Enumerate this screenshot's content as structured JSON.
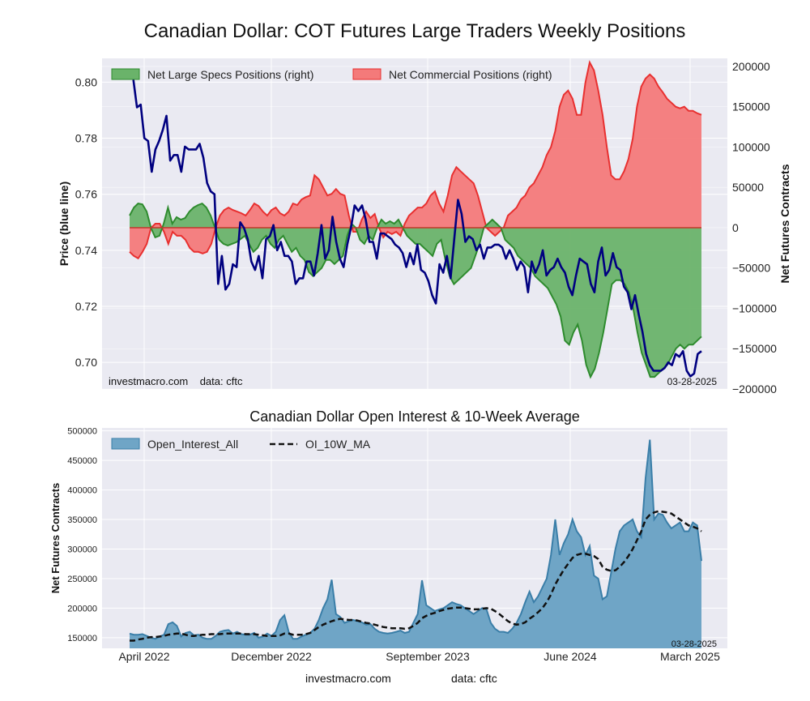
{
  "page": {
    "title": "Canadian Dollar: COT Futures Large Traders Weekly Positions",
    "footer_site": "investmacro.com",
    "footer_data": "data: cftc"
  },
  "chart_data": [
    {
      "type": "line",
      "title": "Canadian Dollar: COT Futures Large Traders Weekly Positions",
      "ylabel": "Price (blue line)",
      "ylabel_right": "Net Futures Contracts",
      "ylim": [
        0.6905,
        0.8085
      ],
      "ylim_right": [
        -200000,
        210000
      ],
      "yticks": [
        0.7,
        0.72,
        0.74,
        0.76,
        0.78,
        0.8
      ],
      "ytick_labels": [
        "0.70",
        "0.72",
        "0.74",
        "0.76",
        "0.78",
        "0.80"
      ],
      "yticks_right": [
        -200000,
        -150000,
        -100000,
        -50000,
        0,
        50000,
        100000,
        150000,
        200000
      ],
      "ytick_labels_right": [
        "−200000",
        "−150000",
        "−100000",
        "−50000",
        "0",
        "50000",
        "100000",
        "150000",
        "200000"
      ],
      "legend_position": "top-left",
      "grid": true,
      "watermark": "investmacro.com    data: cftc",
      "date_label": "03-28-2025",
      "series": [
        {
          "name": "Price",
          "color": "#000080",
          "values": [
            0.802,
            0.801,
            0.791,
            0.792,
            0.78,
            0.779,
            0.768,
            0.776,
            0.779,
            0.783,
            0.788,
            0.772,
            0.774,
            0.774,
            0.768,
            0.777,
            0.776,
            0.776,
            0.776,
            0.778,
            0.773,
            0.764,
            0.761,
            0.76,
            0.728,
            0.738,
            0.726,
            0.728,
            0.735,
            0.734,
            0.75,
            0.748,
            0.744,
            0.736,
            0.733,
            0.738,
            0.73,
            0.744,
            0.745,
            0.749,
            0.74,
            0.743,
            0.738,
            0.738,
            0.736,
            0.728,
            0.73,
            0.73,
            0.736,
            0.736,
            0.731,
            0.739,
            0.749,
            0.737,
            0.74,
            0.752,
            0.743,
            0.737,
            0.734,
            0.742,
            0.748,
            0.756,
            0.754,
            0.756,
            0.751,
            0.743,
            0.743,
            0.737,
            0.746,
            0.746,
            0.745,
            0.744,
            0.742,
            0.741,
            0.739,
            0.734,
            0.739,
            0.735,
            0.742,
            0.733,
            0.732,
            0.729,
            0.724,
            0.721,
            0.735,
            0.732,
            0.738,
            0.73,
            0.744,
            0.758,
            0.753,
            0.743,
            0.745,
            0.744,
            0.74,
            0.742,
            0.737,
            0.741,
            0.741,
            0.742,
            0.742,
            0.741,
            0.737,
            0.74,
            0.737,
            0.733,
            0.736,
            0.734,
            0.725,
            0.736,
            0.732,
            0.735,
            0.74,
            0.731,
            0.733,
            0.734,
            0.737,
            0.734,
            0.732,
            0.727,
            0.724,
            0.731,
            0.737,
            0.736,
            0.735,
            0.728,
            0.725,
            0.736,
            0.741,
            0.731,
            0.733,
            0.739,
            0.734,
            0.733,
            0.727,
            0.725,
            0.719,
            0.724,
            0.717,
            0.711,
            0.703,
            0.699,
            0.697,
            0.697,
            0.697,
            0.698,
            0.7,
            0.699,
            0.703,
            0.702,
            0.704,
            0.697,
            0.695,
            0.696,
            0.703,
            0.704
          ]
        },
        {
          "name": "Net Large Specs Positions (right)",
          "color": "#2e8b2e",
          "fill": "#6ab36a",
          "values": [
            15000,
            25000,
            30000,
            29000,
            20000,
            0,
            -12000,
            -10000,
            5000,
            25000,
            5000,
            13000,
            10000,
            12000,
            20000,
            25000,
            28000,
            30000,
            25000,
            15000,
            0,
            -15000,
            -20000,
            -22000,
            -20000,
            -18000,
            -14000,
            -10000,
            -20000,
            -30000,
            -25000,
            -15000,
            -10000,
            -20000,
            -25000,
            -15000,
            -10000,
            -20000,
            -30000,
            -25000,
            -35000,
            -40000,
            -55000,
            -60000,
            -55000,
            -50000,
            -40000,
            -40000,
            -45000,
            -40000,
            -35000,
            -10000,
            5000,
            0,
            -15000,
            -20000,
            -10000,
            -15000,
            0,
            10000,
            5000,
            8000,
            5000,
            10000,
            0,
            -10000,
            -15000,
            -20000,
            -20000,
            -25000,
            -30000,
            -35000,
            -20000,
            -15000,
            -40000,
            -60000,
            -70000,
            -65000,
            -60000,
            -55000,
            -50000,
            -35000,
            -20000,
            0,
            5000,
            10000,
            5000,
            0,
            -15000,
            -20000,
            -25000,
            -35000,
            -40000,
            -45000,
            -50000,
            -60000,
            -65000,
            -70000,
            -75000,
            -85000,
            -95000,
            -110000,
            -140000,
            -145000,
            -130000,
            -120000,
            -140000,
            -170000,
            -185000,
            -175000,
            -155000,
            -130000,
            -100000,
            -70000,
            -65000,
            -65000,
            -70000,
            -80000,
            -100000,
            -130000,
            -155000,
            -170000,
            -185000,
            -185000,
            -180000,
            -175000,
            -170000,
            -160000,
            -150000,
            -145000,
            -150000,
            -145000,
            -145000,
            -140000,
            -135000
          ]
        },
        {
          "name": "Net Commercial Positions (right)",
          "color": "#e83030",
          "fill": "#f47a7a",
          "values": [
            -30000,
            -35000,
            -38000,
            -30000,
            -20000,
            0,
            5000,
            5000,
            -5000,
            -20000,
            -5000,
            -10000,
            -10000,
            -15000,
            -25000,
            -30000,
            -30000,
            -32000,
            -30000,
            -20000,
            0,
            15000,
            22000,
            25000,
            22000,
            20000,
            18000,
            15000,
            22000,
            30000,
            27000,
            20000,
            15000,
            22000,
            25000,
            18000,
            15000,
            20000,
            30000,
            28000,
            35000,
            38000,
            40000,
            65000,
            60000,
            50000,
            40000,
            42000,
            48000,
            42000,
            40000,
            15000,
            -5000,
            -5000,
            10000,
            20000,
            12000,
            17000,
            0,
            -12000,
            -5000,
            -8000,
            -5000,
            -10000,
            5000,
            15000,
            20000,
            25000,
            25000,
            30000,
            40000,
            45000,
            30000,
            20000,
            40000,
            65000,
            75000,
            70000,
            65000,
            60000,
            55000,
            40000,
            20000,
            0,
            -5000,
            -10000,
            -5000,
            0,
            15000,
            20000,
            25000,
            35000,
            40000,
            50000,
            55000,
            65000,
            75000,
            90000,
            100000,
            120000,
            150000,
            165000,
            170000,
            160000,
            140000,
            140000,
            180000,
            205000,
            195000,
            170000,
            140000,
            100000,
            65000,
            60000,
            60000,
            70000,
            85000,
            110000,
            150000,
            175000,
            185000,
            190000,
            185000,
            175000,
            168000,
            160000,
            155000,
            150000,
            148000,
            150000,
            145000,
            145000,
            142000,
            140000
          ]
        }
      ]
    },
    {
      "type": "area",
      "title": "Canadian Dollar Open Interest & 10-Week Average",
      "ylabel": "Net Futures Contracts",
      "ylim": [
        132000,
        505000
      ],
      "yticks": [
        150000,
        200000,
        250000,
        300000,
        350000,
        400000,
        450000,
        500000
      ],
      "ytick_labels": [
        "150000",
        "200000",
        "250000",
        "300000",
        "350000",
        "400000",
        "450000",
        "500000"
      ],
      "x_tick_labels": [
        "April 2022",
        "December 2022",
        "September 2023",
        "June 2024",
        "March 2025"
      ],
      "legend_position": "top-left",
      "grid": true,
      "date_label": "03-28-2025",
      "series": [
        {
          "name": "Open_Interest_All",
          "color": "#3a7ea8",
          "fill": "#6fa5c6",
          "values": [
            157000,
            155000,
            155000,
            156000,
            153000,
            150000,
            148000,
            152000,
            155000,
            173000,
            176000,
            170000,
            152000,
            158000,
            160000,
            154000,
            155000,
            150000,
            148000,
            148000,
            153000,
            160000,
            162000,
            163000,
            157000,
            160000,
            156000,
            155000,
            155000,
            158000,
            150000,
            152000,
            157000,
            153000,
            160000,
            180000,
            188000,
            160000,
            148000,
            148000,
            152000,
            155000,
            158000,
            165000,
            180000,
            200000,
            215000,
            248000,
            190000,
            185000,
            175000,
            178000,
            180000,
            178000,
            176000,
            172000,
            173000,
            165000,
            160000,
            158000,
            157000,
            158000,
            160000,
            162000,
            158000,
            160000,
            175000,
            190000,
            247000,
            205000,
            200000,
            195000,
            198000,
            200000,
            205000,
            210000,
            207000,
            205000,
            200000,
            195000,
            190000,
            195000,
            200000,
            198000,
            175000,
            165000,
            160000,
            160000,
            158000,
            165000,
            175000,
            190000,
            210000,
            228000,
            210000,
            220000,
            235000,
            250000,
            290000,
            350000,
            290000,
            310000,
            325000,
            350000,
            330000,
            320000,
            290000,
            305000,
            255000,
            250000,
            215000,
            220000,
            260000,
            300000,
            330000,
            340000,
            345000,
            350000,
            330000,
            320000,
            420000,
            485000,
            350000,
            360000,
            358000,
            345000,
            335000,
            340000,
            345000,
            330000,
            330000,
            345000,
            340000,
            280000
          ],
          "color_note": "area"
        },
        {
          "name": "OI_10W_MA",
          "color": "#111111",
          "values": [
            145000,
            145000,
            147000,
            148000,
            150000,
            151000,
            151000,
            152000,
            153000,
            155000,
            156000,
            157000,
            157000,
            155000,
            153000,
            153000,
            154000,
            155000,
            155000,
            156000,
            156000,
            156000,
            157000,
            157000,
            157000,
            157000,
            157000,
            156000,
            156000,
            156000,
            155000,
            154000,
            153000,
            153000,
            153000,
            154000,
            157000,
            157000,
            155000,
            155000,
            155000,
            156000,
            158000,
            163000,
            168000,
            172000,
            175000,
            178000,
            180000,
            182000,
            181000,
            180000,
            180000,
            179000,
            177000,
            175000,
            174000,
            172000,
            170000,
            168000,
            167000,
            166000,
            166000,
            166000,
            165000,
            166000,
            170000,
            175000,
            183000,
            187000,
            190000,
            192000,
            195000,
            197000,
            199000,
            200000,
            201000,
            201000,
            200000,
            199000,
            198000,
            198000,
            199000,
            200000,
            199000,
            195000,
            190000,
            184000,
            178000,
            174000,
            172000,
            173000,
            176000,
            182000,
            187000,
            193000,
            200000,
            210000,
            223000,
            240000,
            253000,
            265000,
            275000,
            285000,
            290000,
            292000,
            292000,
            290000,
            288000,
            283000,
            270000,
            265000,
            263000,
            264000,
            270000,
            278000,
            288000,
            300000,
            315000,
            330000,
            350000,
            358000,
            362000,
            364000,
            363000,
            362000,
            360000,
            355000,
            350000,
            345000,
            340000,
            338000,
            335000,
            330000
          ]
        }
      ]
    }
  ]
}
